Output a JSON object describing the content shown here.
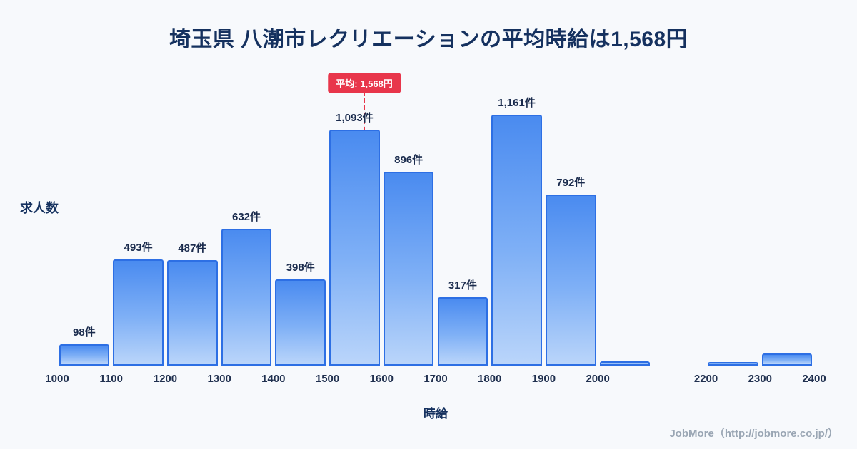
{
  "footer": "JobMore（http://jobmore.co.jp/）",
  "colors": {
    "background": "#f7f9fc",
    "title_text": "#15315f",
    "bar_fill_top": "#4a8bf0",
    "bar_fill_bottom": "#bad5fa",
    "bar_border": "#2d6fe4",
    "average_red": "#e8364b",
    "footer_gray": "#9aa6b4"
  },
  "chart_data": {
    "type": "bar",
    "title": "埼玉県 八潮市レクリエーションの平均時給は1,568円",
    "xlabel": "時給",
    "ylabel": "求人数",
    "x_min": 1000,
    "x_max": 2400,
    "bin_width": 100,
    "ylim": [
      0,
      1230
    ],
    "grid": false,
    "legend": "none",
    "x_ticks": [
      1000,
      1100,
      1200,
      1300,
      1400,
      1500,
      1600,
      1700,
      1800,
      1900,
      2000,
      2200,
      2300,
      2400
    ],
    "bars": [
      {
        "range": [
          1000,
          1100
        ],
        "value": 98,
        "label": "98件"
      },
      {
        "range": [
          1100,
          1200
        ],
        "value": 493,
        "label": "493件"
      },
      {
        "range": [
          1200,
          1300
        ],
        "value": 487,
        "label": "487件"
      },
      {
        "range": [
          1300,
          1400
        ],
        "value": 632,
        "label": "632件"
      },
      {
        "range": [
          1400,
          1500
        ],
        "value": 398,
        "label": "398件"
      },
      {
        "range": [
          1500,
          1600
        ],
        "value": 1093,
        "label": "1,093件"
      },
      {
        "range": [
          1600,
          1700
        ],
        "value": 896,
        "label": "896件"
      },
      {
        "range": [
          1700,
          1800
        ],
        "value": 317,
        "label": "317件"
      },
      {
        "range": [
          1800,
          1900
        ],
        "value": 1161,
        "label": "1,161件"
      },
      {
        "range": [
          1900,
          2000
        ],
        "value": 792,
        "label": "792件"
      },
      {
        "range": [
          2000,
          2100
        ],
        "value": 20,
        "label": ""
      },
      {
        "range": [
          2100,
          2200
        ],
        "value": 0,
        "label": ""
      },
      {
        "range": [
          2200,
          2300
        ],
        "value": 15,
        "label": ""
      },
      {
        "range": [
          2300,
          2400
        ],
        "value": 55,
        "label": ""
      }
    ],
    "average_line": {
      "value": 1568,
      "label": "平均: 1,568円",
      "color": "#e8364b",
      "style": "dashed"
    }
  }
}
